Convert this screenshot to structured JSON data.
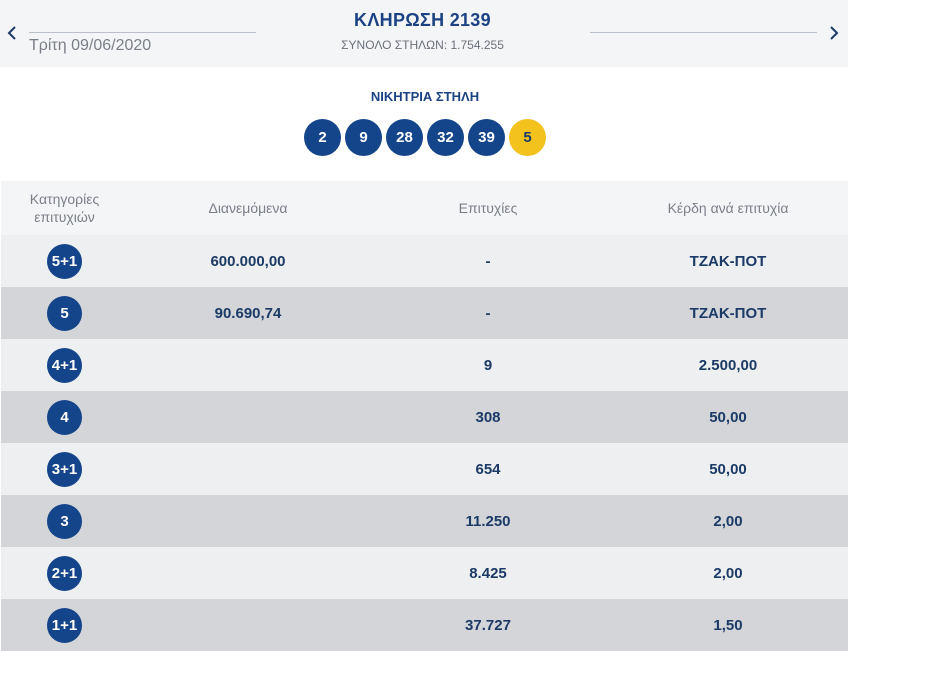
{
  "header": {
    "prev_icon": "chevron-left-icon",
    "next_icon": "chevron-right-icon",
    "date": "Τρίτη 09/06/2020",
    "title": "ΚΛΗΡΩΣΗ 2139",
    "subtitle": "ΣΥΝΟΛΟ ΣΤΗΛΩΝ: 1.754.255"
  },
  "winning": {
    "label": "ΝΙΚΗΤΡΙΑ ΣΤΗΛΗ",
    "numbers": [
      "2",
      "9",
      "28",
      "32",
      "39"
    ],
    "bonus": "5"
  },
  "colors": {
    "accent": "#14458a",
    "bonus": "#f4c21c",
    "row_light": "#eeeff1",
    "row_dark": "#d3d5d9",
    "header_bg": "#f4f5f7"
  },
  "table": {
    "columns": [
      "Κατηγορίες επιτυχιών",
      "Διανεμόμενα",
      "Επιτυχίες",
      "Κέρδη ανά επιτυχία"
    ],
    "rows": [
      {
        "category": "5+1",
        "distributed": "600.000,00",
        "winners": "-",
        "prize": "ΤΖΑΚ-ΠΟΤ"
      },
      {
        "category": "5",
        "distributed": "90.690,74",
        "winners": "-",
        "prize": "ΤΖΑΚ-ΠΟΤ"
      },
      {
        "category": "4+1",
        "distributed": "",
        "winners": "9",
        "prize": "2.500,00"
      },
      {
        "category": "4",
        "distributed": "",
        "winners": "308",
        "prize": "50,00"
      },
      {
        "category": "3+1",
        "distributed": "",
        "winners": "654",
        "prize": "50,00"
      },
      {
        "category": "3",
        "distributed": "",
        "winners": "11.250",
        "prize": "2,00"
      },
      {
        "category": "2+1",
        "distributed": "",
        "winners": "8.425",
        "prize": "2,00"
      },
      {
        "category": "1+1",
        "distributed": "",
        "winners": "37.727",
        "prize": "1,50"
      }
    ]
  }
}
